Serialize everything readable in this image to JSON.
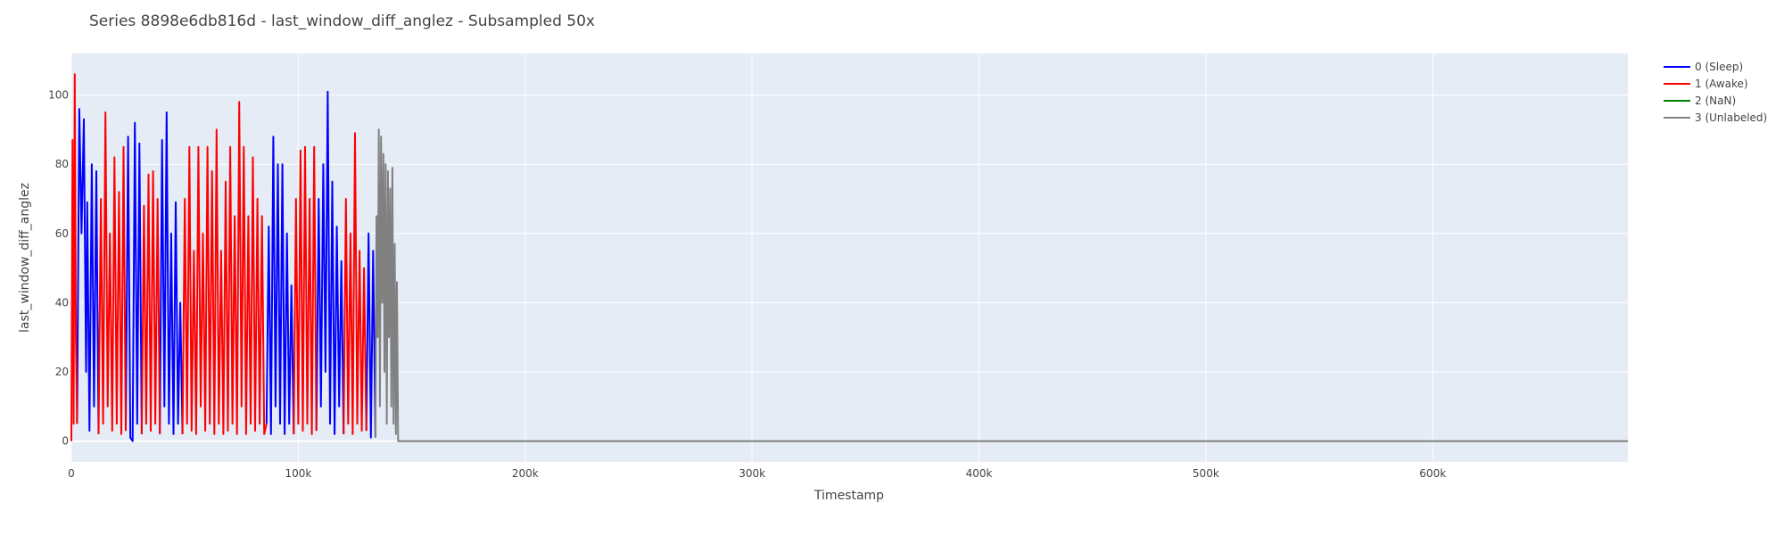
{
  "chart_data": {
    "type": "line",
    "title": "Series 8898e6db816d - last_window_diff_anglez - Subsampled 50x",
    "xlabel": "Timestamp",
    "ylabel": "last_window_diff_anglez",
    "xlim": [
      0,
      686000
    ],
    "ylim": [
      -6,
      112
    ],
    "x_ticks": [
      0,
      100000,
      200000,
      300000,
      400000,
      500000,
      600000
    ],
    "x_tick_labels": [
      "0",
      "100k",
      "200k",
      "300k",
      "400k",
      "500k",
      "600k"
    ],
    "y_ticks": [
      0,
      20,
      40,
      60,
      80,
      100
    ],
    "y_tick_labels": [
      "0",
      "20",
      "40",
      "60",
      "80",
      "100"
    ],
    "grid": true,
    "legend_position": "top-right, outside plot",
    "plot_background": "#E5ECF6",
    "series": [
      {
        "name": "0 (Sleep)",
        "color": "#0000FF",
        "segments": [
          [
            [
              2500,
              5
            ],
            [
              3500,
              96
            ],
            [
              4500,
              60
            ],
            [
              5500,
              93
            ],
            [
              6500,
              20
            ],
            [
              7000,
              69
            ],
            [
              8000,
              3
            ],
            [
              9000,
              80
            ],
            [
              10000,
              10
            ],
            [
              11000,
              78
            ],
            [
              12000,
              2
            ]
          ],
          [
            [
              24000,
              3
            ],
            [
              25000,
              88
            ],
            [
              26000,
              1
            ],
            [
              27000,
              0
            ],
            [
              28000,
              92
            ],
            [
              29000,
              5
            ],
            [
              30000,
              86
            ],
            [
              31000,
              2
            ]
          ],
          [
            [
              39000,
              2
            ],
            [
              40000,
              87
            ],
            [
              41000,
              10
            ],
            [
              42000,
              95
            ],
            [
              43000,
              5
            ],
            [
              44000,
              60
            ],
            [
              45000,
              2
            ],
            [
              46000,
              69
            ],
            [
              47000,
              5
            ],
            [
              48000,
              40
            ],
            [
              49000,
              2
            ]
          ],
          [
            [
              86000,
              5
            ],
            [
              87000,
              62
            ],
            [
              88000,
              2
            ],
            [
              89000,
              88
            ],
            [
              90000,
              10
            ],
            [
              91000,
              80
            ],
            [
              92000,
              5
            ],
            [
              93000,
              80
            ],
            [
              94000,
              2
            ],
            [
              95000,
              60
            ],
            [
              96000,
              5
            ],
            [
              97000,
              45
            ],
            [
              98000,
              2
            ]
          ],
          [
            [
              108000,
              3
            ],
            [
              109000,
              70
            ],
            [
              110000,
              10
            ],
            [
              111000,
              80
            ],
            [
              112000,
              20
            ],
            [
              113000,
              101
            ],
            [
              114000,
              5
            ],
            [
              115000,
              75
            ],
            [
              116000,
              2
            ],
            [
              117000,
              62
            ],
            [
              118000,
              10
            ],
            [
              119000,
              52
            ],
            [
              120000,
              2
            ]
          ],
          [
            [
              130000,
              3
            ],
            [
              131000,
              60
            ],
            [
              132000,
              1
            ],
            [
              133000,
              55
            ],
            [
              134000,
              1
            ]
          ]
        ]
      },
      {
        "name": "1 (Awake)",
        "color": "#FF0000",
        "segments": [
          [
            [
              0,
              0
            ],
            [
              500,
              87
            ],
            [
              1000,
              5
            ],
            [
              1500,
              106
            ],
            [
              2000,
              30
            ],
            [
              2500,
              5
            ]
          ],
          [
            [
              12000,
              2
            ],
            [
              13000,
              70
            ],
            [
              14000,
              5
            ],
            [
              15000,
              95
            ],
            [
              16000,
              10
            ],
            [
              17000,
              60
            ],
            [
              18000,
              3
            ],
            [
              19000,
              82
            ],
            [
              20000,
              5
            ],
            [
              21000,
              72
            ],
            [
              22000,
              2
            ],
            [
              23000,
              85
            ],
            [
              24000,
              3
            ]
          ],
          [
            [
              31000,
              2
            ],
            [
              32000,
              68
            ],
            [
              33000,
              5
            ],
            [
              34000,
              77
            ],
            [
              35000,
              3
            ],
            [
              36000,
              78
            ],
            [
              37000,
              5
            ],
            [
              38000,
              70
            ],
            [
              39000,
              2
            ]
          ],
          [
            [
              49000,
              2
            ],
            [
              50000,
              70
            ],
            [
              51000,
              5
            ],
            [
              52000,
              85
            ],
            [
              53000,
              3
            ],
            [
              54000,
              55
            ],
            [
              55000,
              2
            ],
            [
              56000,
              85
            ],
            [
              57000,
              10
            ],
            [
              58000,
              60
            ],
            [
              59000,
              3
            ],
            [
              60000,
              85
            ],
            [
              61000,
              5
            ],
            [
              62000,
              78
            ],
            [
              63000,
              2
            ],
            [
              64000,
              90
            ],
            [
              65000,
              5
            ],
            [
              66000,
              55
            ],
            [
              67000,
              2
            ],
            [
              68000,
              75
            ],
            [
              69000,
              3
            ],
            [
              70000,
              85
            ],
            [
              71000,
              5
            ],
            [
              72000,
              65
            ],
            [
              73000,
              2
            ],
            [
              74000,
              98
            ],
            [
              75000,
              10
            ],
            [
              76000,
              85
            ],
            [
              77000,
              2
            ],
            [
              78000,
              65
            ],
            [
              79000,
              5
            ],
            [
              80000,
              82
            ],
            [
              81000,
              3
            ],
            [
              82000,
              70
            ],
            [
              83000,
              5
            ],
            [
              84000,
              65
            ],
            [
              85000,
              2
            ],
            [
              86000,
              5
            ]
          ],
          [
            [
              98000,
              2
            ],
            [
              99000,
              70
            ],
            [
              100000,
              5
            ],
            [
              101000,
              84
            ],
            [
              102000,
              3
            ],
            [
              103000,
              85
            ],
            [
              104000,
              5
            ],
            [
              105000,
              70
            ],
            [
              106000,
              2
            ],
            [
              107000,
              85
            ],
            [
              108000,
              3
            ]
          ],
          [
            [
              120000,
              2
            ],
            [
              121000,
              70
            ],
            [
              122000,
              5
            ],
            [
              123000,
              60
            ],
            [
              124000,
              2
            ],
            [
              125000,
              89
            ],
            [
              126000,
              5
            ],
            [
              127000,
              55
            ],
            [
              128000,
              3
            ],
            [
              129000,
              50
            ],
            [
              130000,
              3
            ]
          ]
        ]
      },
      {
        "name": "2 (NaN)",
        "color": "#008000",
        "segments": []
      },
      {
        "name": "3 (Unlabeled)",
        "color": "#808080",
        "segments": [
          [
            [
              134000,
              1
            ],
            [
              134500,
              65
            ],
            [
              135000,
              30
            ],
            [
              135500,
              90
            ],
            [
              136000,
              10
            ],
            [
              136500,
              88
            ],
            [
              137000,
              40
            ],
            [
              137500,
              83
            ],
            [
              138000,
              20
            ],
            [
              138500,
              80
            ],
            [
              139000,
              5
            ],
            [
              139500,
              78
            ],
            [
              140000,
              30
            ],
            [
              140500,
              73
            ],
            [
              141000,
              10
            ],
            [
              141500,
              79
            ],
            [
              142000,
              5
            ],
            [
              142500,
              57
            ],
            [
              143000,
              2
            ],
            [
              143500,
              46
            ],
            [
              144000,
              0
            ],
            [
              686000,
              0
            ]
          ]
        ]
      }
    ]
  }
}
